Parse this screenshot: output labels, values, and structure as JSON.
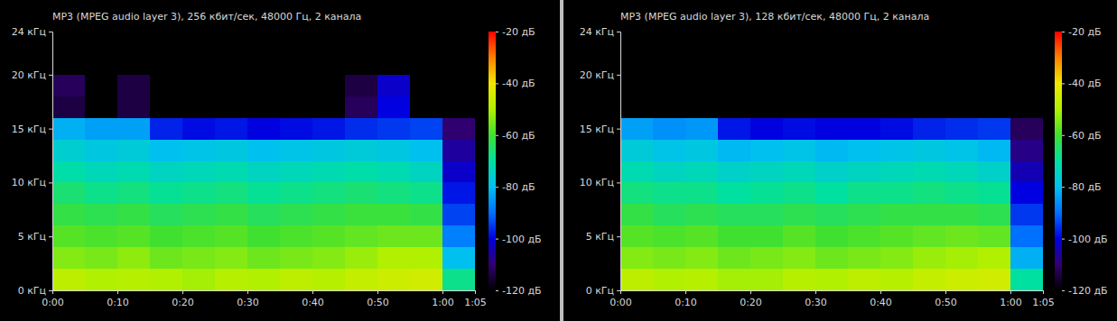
{
  "chart_data": [
    {
      "type": "heatmap",
      "title": "MP3 (MPEG audio layer 3), 256 кбит/сек, 48000 Гц, 2 канала",
      "x": [
        0,
        5,
        10,
        15,
        20,
        25,
        30,
        35,
        40,
        45,
        50,
        55,
        60
      ],
      "y": [
        0,
        2,
        4,
        6,
        8,
        10,
        12,
        14,
        16,
        18,
        20,
        22
      ],
      "xlim": [
        0,
        65
      ],
      "ylim": [
        0,
        24
      ],
      "xticks": [
        {
          "value": 0,
          "label": "0:00"
        },
        {
          "value": 10,
          "label": "0:10"
        },
        {
          "value": 20,
          "label": "0:20"
        },
        {
          "value": 30,
          "label": "0:30"
        },
        {
          "value": 40,
          "label": "0:40"
        },
        {
          "value": 50,
          "label": "0:50"
        },
        {
          "value": 60,
          "label": "1:00"
        },
        {
          "value": 65,
          "label": "1:05"
        }
      ],
      "yticks": [
        {
          "value": 0,
          "label": "0 кГц"
        },
        {
          "value": 5,
          "label": "5 кГц"
        },
        {
          "value": 10,
          "label": "10 кГц"
        },
        {
          "value": 15,
          "label": "15 кГц"
        },
        {
          "value": 20,
          "label": "20 кГц"
        },
        {
          "value": 24,
          "label": "24 кГц"
        }
      ],
      "values": [
        [
          -48,
          -50,
          -49,
          -50,
          -51,
          -49,
          -50,
          -48,
          -49,
          -47,
          -46,
          -45,
          -68
        ],
        [
          -54,
          -55,
          -53,
          -56,
          -55,
          -54,
          -56,
          -55,
          -54,
          -52,
          -50,
          -50,
          -80
        ],
        [
          -58,
          -59,
          -58,
          -60,
          -59,
          -58,
          -60,
          -59,
          -58,
          -57,
          -56,
          -56,
          -88
        ],
        [
          -62,
          -63,
          -62,
          -64,
          -63,
          -62,
          -64,
          -63,
          -62,
          -61,
          -61,
          -62,
          -94
        ],
        [
          -66,
          -68,
          -67,
          -69,
          -68,
          -67,
          -69,
          -68,
          -67,
          -66,
          -67,
          -68,
          -98
        ],
        [
          -71,
          -73,
          -72,
          -74,
          -73,
          -72,
          -74,
          -73,
          -72,
          -71,
          -72,
          -74,
          -102
        ],
        [
          -76,
          -78,
          -77,
          -80,
          -79,
          -78,
          -80,
          -79,
          -78,
          -77,
          -78,
          -80,
          -106
        ],
        [
          -82,
          -84,
          -84,
          -97,
          -99,
          -98,
          -100,
          -99,
          -98,
          -96,
          -95,
          -94,
          -110
        ],
        [
          -114,
          null,
          -114,
          null,
          null,
          null,
          null,
          null,
          null,
          -112,
          -100,
          null,
          null
        ],
        [
          -112,
          null,
          -114,
          null,
          null,
          null,
          null,
          null,
          null,
          -114,
          -102,
          null,
          null
        ],
        [
          null,
          null,
          null,
          null,
          null,
          null,
          null,
          null,
          null,
          null,
          null,
          null,
          null
        ],
        [
          null,
          null,
          null,
          null,
          null,
          null,
          null,
          null,
          null,
          null,
          null,
          null,
          null
        ]
      ],
      "color_range": [
        -120,
        -20
      ],
      "color_ticks": [
        {
          "value": -120,
          "label": "-120 дБ"
        },
        {
          "value": -100,
          "label": "-100 дБ"
        },
        {
          "value": -80,
          "label": "-80 дБ"
        },
        {
          "value": -60,
          "label": "-60 дБ"
        },
        {
          "value": -40,
          "label": "-40 дБ"
        },
        {
          "value": -20,
          "label": "-20 дБ"
        }
      ]
    },
    {
      "type": "heatmap",
      "title": "MP3 (MPEG audio layer 3), 128 кбит/сек, 48000 Гц, 2 канала",
      "x": [
        0,
        5,
        10,
        15,
        20,
        25,
        30,
        35,
        40,
        45,
        50,
        55,
        60
      ],
      "y": [
        0,
        2,
        4,
        6,
        8,
        10,
        12,
        14,
        16,
        18,
        20,
        22
      ],
      "xlim": [
        0,
        65
      ],
      "ylim": [
        0,
        24
      ],
      "xticks": [
        {
          "value": 0,
          "label": "0:00"
        },
        {
          "value": 10,
          "label": "0:10"
        },
        {
          "value": 20,
          "label": "0:20"
        },
        {
          "value": 30,
          "label": "0:30"
        },
        {
          "value": 40,
          "label": "0:40"
        },
        {
          "value": 50,
          "label": "0:50"
        },
        {
          "value": 60,
          "label": "1:00"
        },
        {
          "value": 65,
          "label": "1:05"
        }
      ],
      "yticks": [
        {
          "value": 0,
          "label": "0 кГц"
        },
        {
          "value": 5,
          "label": "5 кГц"
        },
        {
          "value": 10,
          "label": "10 кГц"
        },
        {
          "value": 15,
          "label": "15 кГц"
        },
        {
          "value": 20,
          "label": "20 кГц"
        },
        {
          "value": 24,
          "label": "24 кГц"
        }
      ],
      "values": [
        [
          -48,
          -50,
          -49,
          -51,
          -51,
          -49,
          -50,
          -48,
          -49,
          -47,
          -46,
          -45,
          -70
        ],
        [
          -54,
          -55,
          -54,
          -56,
          -55,
          -54,
          -56,
          -55,
          -54,
          -52,
          -51,
          -50,
          -82
        ],
        [
          -58,
          -59,
          -58,
          -60,
          -60,
          -58,
          -60,
          -59,
          -58,
          -57,
          -56,
          -57,
          -90
        ],
        [
          -62,
          -64,
          -63,
          -64,
          -64,
          -63,
          -64,
          -63,
          -62,
          -62,
          -62,
          -63,
          -95
        ],
        [
          -67,
          -68,
          -68,
          -70,
          -69,
          -68,
          -70,
          -68,
          -68,
          -67,
          -68,
          -69,
          -100
        ],
        [
          -72,
          -74,
          -73,
          -75,
          -74,
          -73,
          -75,
          -74,
          -73,
          -72,
          -73,
          -75,
          -104
        ],
        [
          -77,
          -79,
          -78,
          -81,
          -80,
          -79,
          -81,
          -80,
          -79,
          -78,
          -79,
          -81,
          -108
        ],
        [
          -84,
          -86,
          -85,
          -98,
          -100,
          -99,
          -100,
          -100,
          -99,
          -97,
          -96,
          -95,
          -112
        ],
        [
          null,
          null,
          null,
          null,
          null,
          null,
          null,
          null,
          null,
          null,
          null,
          null,
          null
        ],
        [
          null,
          null,
          null,
          null,
          null,
          null,
          null,
          null,
          null,
          null,
          null,
          null,
          null
        ],
        [
          null,
          null,
          null,
          null,
          null,
          null,
          null,
          null,
          null,
          null,
          null,
          null,
          null
        ],
        [
          null,
          null,
          null,
          null,
          null,
          null,
          null,
          null,
          null,
          null,
          null,
          null,
          null
        ]
      ],
      "color_range": [
        -120,
        -20
      ],
      "color_ticks": [
        {
          "value": -120,
          "label": "-120 дБ"
        },
        {
          "value": -100,
          "label": "-100 дБ"
        },
        {
          "value": -80,
          "label": "-80 дБ"
        },
        {
          "value": -60,
          "label": "-60 дБ"
        },
        {
          "value": -40,
          "label": "-40 дБ"
        },
        {
          "value": -20,
          "label": "-20 дБ"
        }
      ]
    }
  ]
}
